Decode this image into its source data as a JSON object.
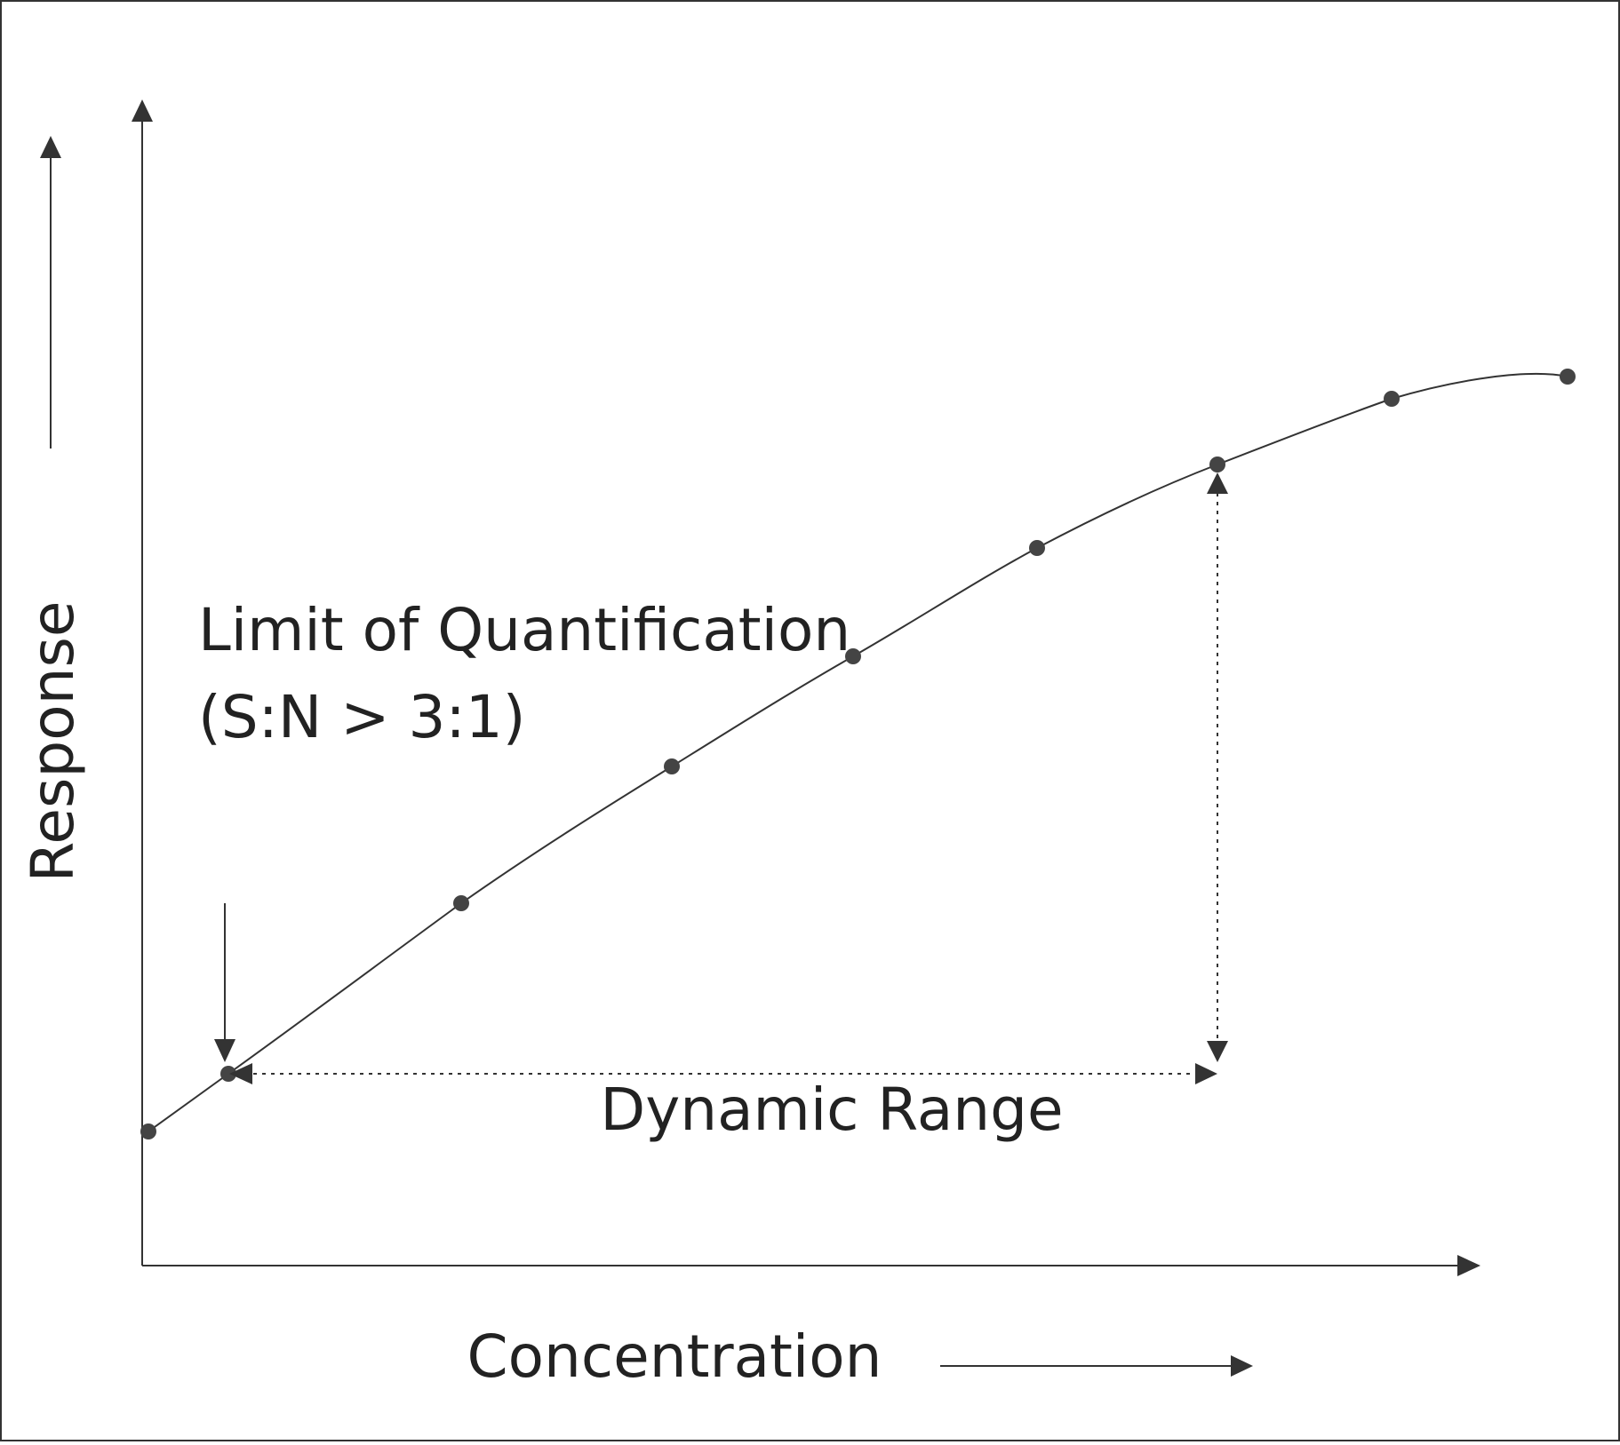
{
  "axes": {
    "y_label": "Response",
    "x_label": "Concentration"
  },
  "annotations": {
    "loq": {
      "line1": "Limit of Quantification",
      "line2": "(S:N > 3:1)"
    },
    "dynamic_range": "Dynamic Range"
  }
}
